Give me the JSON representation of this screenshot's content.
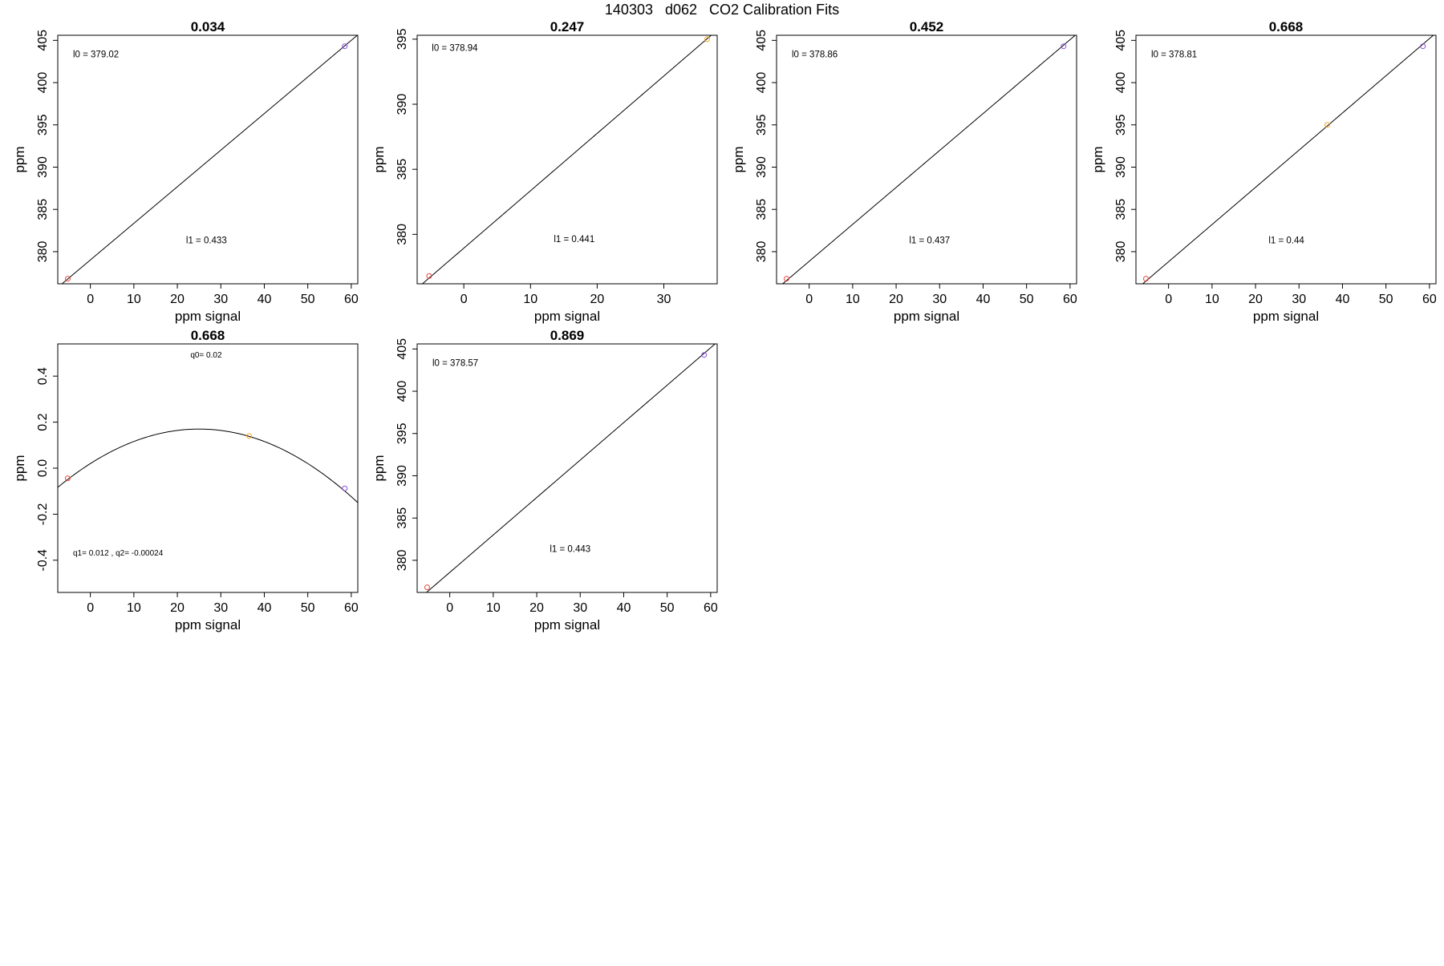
{
  "figure": {
    "title": "140303   d062   CO2 Calibration Fits"
  },
  "colors": {
    "axis": "#000000",
    "fit_line": "#000000",
    "point_red": "#e8453c",
    "point_orange": "#f5a623",
    "point_purple": "#8a4fd8"
  },
  "chart_data": [
    {
      "type": "line",
      "title": "0.034",
      "xlabel": "ppm signal",
      "ylabel": "ppm",
      "xlim": [
        -7.5,
        61.5
      ],
      "ylim": [
        376.2,
        405.6
      ],
      "xticks": [
        0,
        10,
        20,
        30,
        40,
        50,
        60
      ],
      "yticks": [
        380,
        385,
        390,
        395,
        400,
        405
      ],
      "fit": {
        "kind": "linear",
        "intercept": 379.02,
        "slope": 0.433
      },
      "points": [
        {
          "x": -5.2,
          "y": 376.8,
          "color": "red"
        },
        {
          "x": 58.5,
          "y": 404.3,
          "color": "purple"
        }
      ],
      "annotations": [
        {
          "text": "l0 =  379.02",
          "x": -4.0,
          "y": 403.0
        },
        {
          "text": "l1 =  0.433",
          "x": 22.0,
          "y": 381.0
        }
      ]
    },
    {
      "type": "line",
      "title": "0.247",
      "xlabel": "ppm signal",
      "ylabel": "ppm",
      "xlim": [
        -7.0,
        38.0
      ],
      "ylim": [
        376.2,
        395.3
      ],
      "xticks": [
        0,
        10,
        20,
        30
      ],
      "yticks": [
        380,
        385,
        390,
        395
      ],
      "fit": {
        "kind": "linear",
        "intercept": 378.94,
        "slope": 0.441
      },
      "points": [
        {
          "x": -5.2,
          "y": 376.8,
          "color": "red"
        },
        {
          "x": 36.5,
          "y": 395.0,
          "color": "orange"
        }
      ],
      "annotations": [
        {
          "text": "l0 =  378.94",
          "x": -4.8,
          "y": 394.1
        },
        {
          "text": "l1 =  0.441",
          "x": 13.5,
          "y": 379.4
        }
      ]
    },
    {
      "type": "line",
      "title": "0.452",
      "xlabel": "ppm signal",
      "ylabel": "ppm",
      "xlim": [
        -7.5,
        61.5
      ],
      "ylim": [
        376.2,
        405.6
      ],
      "xticks": [
        0,
        10,
        20,
        30,
        40,
        50,
        60
      ],
      "yticks": [
        380,
        385,
        390,
        395,
        400,
        405
      ],
      "fit": {
        "kind": "linear",
        "intercept": 378.86,
        "slope": 0.437
      },
      "points": [
        {
          "x": -5.2,
          "y": 376.8,
          "color": "red"
        },
        {
          "x": 58.5,
          "y": 404.3,
          "color": "purple"
        }
      ],
      "annotations": [
        {
          "text": "l0 =  378.86",
          "x": -4.0,
          "y": 403.0
        },
        {
          "text": "l1 =  0.437",
          "x": 23.0,
          "y": 381.0
        }
      ]
    },
    {
      "type": "line",
      "title": "0.668",
      "xlabel": "ppm signal",
      "ylabel": "ppm",
      "xlim": [
        -7.5,
        61.5
      ],
      "ylim": [
        376.2,
        405.6
      ],
      "xticks": [
        0,
        10,
        20,
        30,
        40,
        50,
        60
      ],
      "yticks": [
        380,
        385,
        390,
        395,
        400,
        405
      ],
      "fit": {
        "kind": "linear",
        "intercept": 378.81,
        "slope": 0.44
      },
      "points": [
        {
          "x": -5.2,
          "y": 376.8,
          "color": "red"
        },
        {
          "x": 36.5,
          "y": 395.0,
          "color": "orange"
        },
        {
          "x": 58.5,
          "y": 404.3,
          "color": "purple"
        }
      ],
      "annotations": [
        {
          "text": "l0 =  378.81",
          "x": -4.0,
          "y": 403.0
        },
        {
          "text": "l1 =  0.44",
          "x": 23.0,
          "y": 381.0
        }
      ]
    },
    {
      "type": "line",
      "title": "0.668",
      "xlabel": "ppm signal",
      "ylabel": "ppm",
      "xlim": [
        -7.5,
        61.5
      ],
      "ylim": [
        -0.54,
        0.54
      ],
      "xticks": [
        0,
        10,
        20,
        30,
        40,
        50,
        60
      ],
      "yticks": [
        -0.4,
        -0.2,
        0.0,
        0.2,
        0.4
      ],
      "fit": {
        "kind": "quadratic",
        "q0": 0.02,
        "q1": 0.012,
        "q2": -0.00024
      },
      "points": [
        {
          "x": -5.2,
          "y": -0.044,
          "color": "red"
        },
        {
          "x": 36.5,
          "y": 0.14,
          "color": "orange"
        },
        {
          "x": 58.5,
          "y": -0.088,
          "color": "purple"
        }
      ],
      "annotations": [
        {
          "text": "q0= 0.02",
          "x": 23.0,
          "y": 0.48,
          "small": true
        },
        {
          "text": "q1= 0.012 , q2= -0.00024",
          "x": -4.0,
          "y": -0.38,
          "small": true
        }
      ]
    },
    {
      "type": "line",
      "title": "0.869",
      "xlabel": "ppm signal",
      "ylabel": "ppm",
      "xlim": [
        -7.5,
        61.5
      ],
      "ylim": [
        376.2,
        405.6
      ],
      "xticks": [
        0,
        10,
        20,
        30,
        40,
        50,
        60
      ],
      "yticks": [
        380,
        385,
        390,
        395,
        400,
        405
      ],
      "fit": {
        "kind": "linear",
        "intercept": 378.57,
        "slope": 0.443
      },
      "points": [
        {
          "x": -5.2,
          "y": 376.8,
          "color": "red"
        },
        {
          "x": 58.5,
          "y": 404.3,
          "color": "purple"
        }
      ],
      "annotations": [
        {
          "text": "l0 =  378.57",
          "x": -4.0,
          "y": 403.0
        },
        {
          "text": "l1 =  0.443",
          "x": 23.0,
          "y": 381.0
        }
      ]
    }
  ]
}
